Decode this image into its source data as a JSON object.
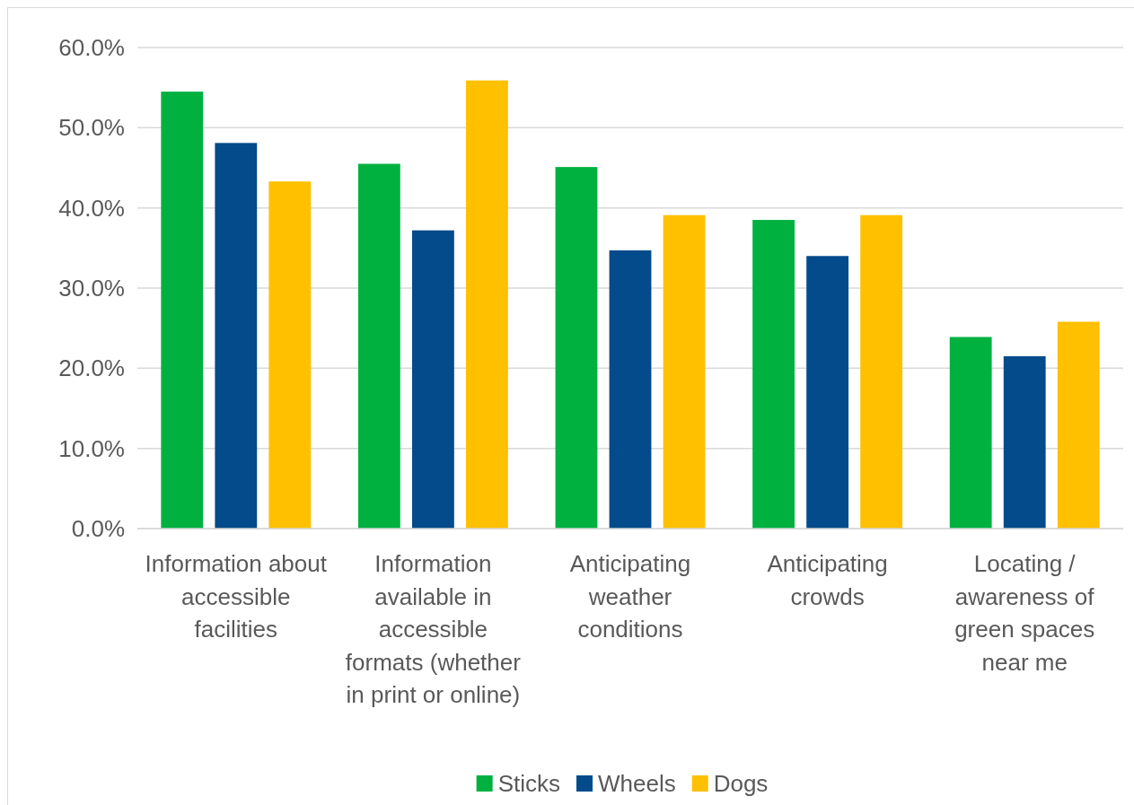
{
  "chart_data": {
    "type": "bar",
    "categories": [
      "Information about accessible facilities",
      "Information available in accessible formats (whether in print or online)",
      "Anticipating weather conditions",
      "Anticipating crowds",
      "Locating / awareness of green spaces near me"
    ],
    "series": [
      {
        "name": "Sticks",
        "color": "#00b140",
        "values": [
          54.5,
          45.5,
          45.1,
          38.5,
          23.9
        ]
      },
      {
        "name": "Wheels",
        "color": "#034b8a",
        "values": [
          48.1,
          37.2,
          34.7,
          34.0,
          21.5
        ]
      },
      {
        "name": "Dogs",
        "color": "#ffc000",
        "values": [
          43.3,
          55.9,
          39.1,
          39.1,
          25.8
        ]
      }
    ],
    "ylim": [
      0,
      60
    ],
    "yticks": [
      {
        "value": 0,
        "label": "0.0%"
      },
      {
        "value": 10,
        "label": "10.0%"
      },
      {
        "value": 20,
        "label": "20.0%"
      },
      {
        "value": 30,
        "label": "30.0%"
      },
      {
        "value": 40,
        "label": "40.0%"
      },
      {
        "value": 50,
        "label": "50.0%"
      },
      {
        "value": 60,
        "label": "60.0%"
      }
    ],
    "grid": "y",
    "legend": "bottom"
  }
}
